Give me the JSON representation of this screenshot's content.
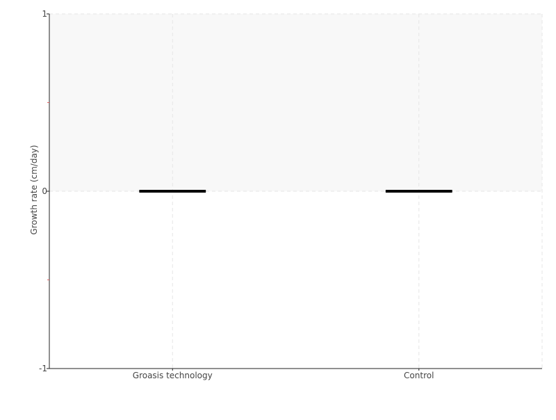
{
  "chart_data": {
    "type": "box",
    "title": "",
    "xlabel": "",
    "ylabel": "Growth rate (cm/day)",
    "ylim": [
      -1,
      1
    ],
    "yticks": [
      {
        "value": 1,
        "label": "1"
      },
      {
        "value": 0,
        "label": "0"
      },
      {
        "value": -1,
        "label": "-1"
      }
    ],
    "minor_yticks": [
      0.5,
      -0.5
    ],
    "categories": [
      "Groasis technology",
      "Control"
    ],
    "boxes": [
      {
        "category": "Groasis technology",
        "min": 0,
        "q1": 0,
        "median": 0,
        "q3": 0,
        "max": 0
      },
      {
        "category": "Control",
        "min": 0,
        "q1": 0,
        "median": 0,
        "q3": 0,
        "max": 0
      }
    ],
    "grid": true,
    "shaded_band": [
      0,
      1
    ],
    "colors": {
      "box": "#000000",
      "band": "#f8f8f8",
      "grid": "#e6e6e6",
      "minor_tick": "#e06060"
    }
  }
}
